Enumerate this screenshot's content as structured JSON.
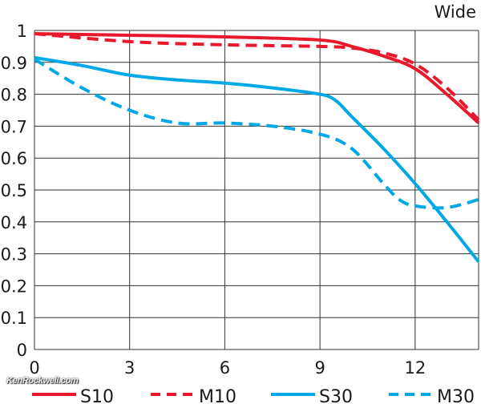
{
  "chart_data": {
    "type": "line",
    "title": "Wide",
    "xlabel": "",
    "ylabel": "",
    "xlim": [
      0,
      14
    ],
    "ylim": [
      0,
      1
    ],
    "grid": true,
    "x_ticks": [
      "0",
      "3",
      "6",
      "9",
      "12"
    ],
    "y_ticks": [
      "0",
      "0.1",
      "0.2",
      "0.3",
      "0.4",
      "0.5",
      "0.6",
      "0.7",
      "0.8",
      "0.9",
      "1"
    ],
    "legend_position": "bottom",
    "watermark": "KenRockwell.com",
    "series": [
      {
        "name": "S10",
        "color": "#e8192c",
        "dashed": false,
        "x": [
          0,
          3,
          6,
          9,
          10,
          11,
          12,
          13,
          14
        ],
        "y": [
          0.99,
          0.985,
          0.98,
          0.97,
          0.95,
          0.92,
          0.88,
          0.8,
          0.71
        ]
      },
      {
        "name": "M10",
        "color": "#e8192c",
        "dashed": true,
        "x": [
          0,
          3,
          6,
          9,
          10,
          11,
          12,
          13,
          14
        ],
        "y": [
          0.99,
          0.965,
          0.955,
          0.95,
          0.945,
          0.93,
          0.895,
          0.82,
          0.72
        ]
      },
      {
        "name": "S30",
        "color": "#00a9e6",
        "dashed": false,
        "x": [
          0,
          1.5,
          3,
          4.5,
          6,
          7.5,
          9,
          9.5,
          10,
          11,
          12,
          13,
          14
        ],
        "y": [
          0.915,
          0.89,
          0.86,
          0.845,
          0.835,
          0.82,
          0.8,
          0.78,
          0.73,
          0.63,
          0.52,
          0.4,
          0.275
        ]
      },
      {
        "name": "M30",
        "color": "#00a9e6",
        "dashed": true,
        "x": [
          0,
          1.5,
          3,
          4.5,
          6,
          7.5,
          9,
          10,
          11,
          11.5,
          12,
          13,
          14
        ],
        "y": [
          0.91,
          0.82,
          0.75,
          0.71,
          0.71,
          0.7,
          0.675,
          0.63,
          0.52,
          0.47,
          0.45,
          0.445,
          0.47
        ]
      }
    ]
  }
}
